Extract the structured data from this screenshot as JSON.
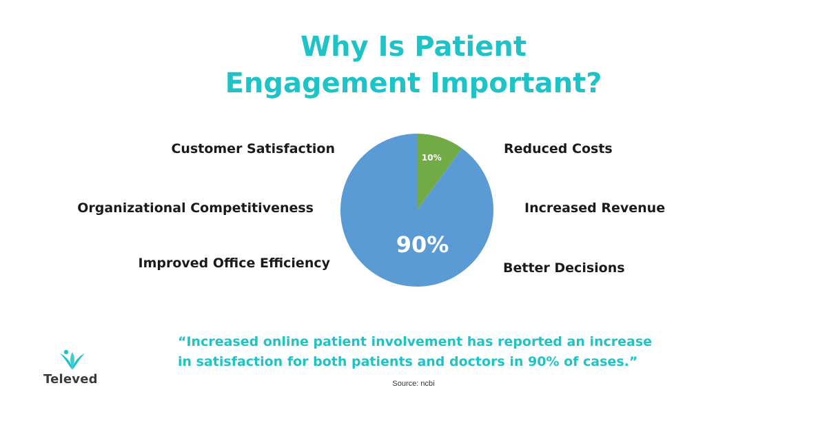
{
  "title": {
    "line1": "Why Is Patient",
    "line2": "Engagement Important?"
  },
  "benefits": {
    "left": [
      "Customer Satisfaction",
      "Organizational Competitiveness",
      "Improved Office Efficiency"
    ],
    "right": [
      "Reduced Costs",
      "Increased Revenue",
      "Better Decisions"
    ]
  },
  "chart_data": {
    "type": "pie",
    "title": "",
    "slices": [
      {
        "label": "10%",
        "value": 10,
        "color": "#72aa46"
      },
      {
        "label": "90%",
        "value": 90,
        "color": "#5b9bd5"
      }
    ]
  },
  "quote": {
    "line1": "“Increased online patient involvement has reported an increase",
    "line2": "in satisfaction for both patients and doctors in 90% of cases.”"
  },
  "source": "Source: ncbi",
  "logo": {
    "name": "Televed",
    "icon": "leaf-sprout-icon",
    "color": "#1ec3c8"
  },
  "colors": {
    "accent": "#1ec3c8",
    "text": "#1a1a1a"
  }
}
